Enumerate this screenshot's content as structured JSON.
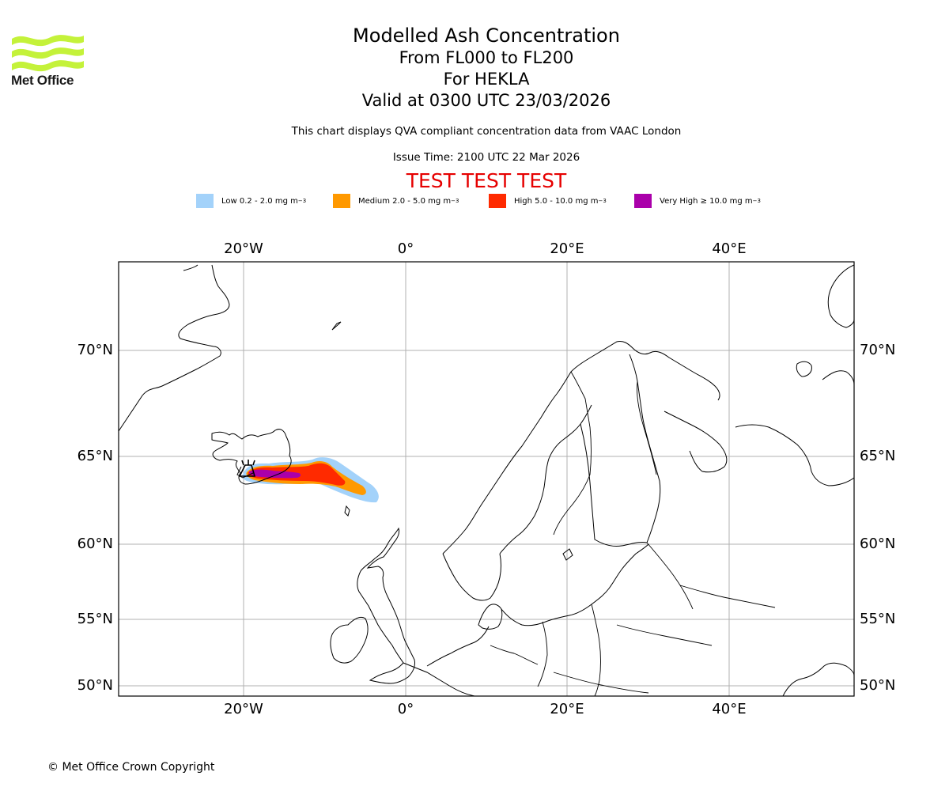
{
  "logo": {
    "text": "Met Office",
    "color": "#c4f23a"
  },
  "title": {
    "line1": "Modelled Ash Concentration",
    "line2": "From FL000 to FL200",
    "line3": "For HEKLA",
    "line4": "Valid at 0300 UTC 23/03/2026"
  },
  "subtitle": "This chart displays QVA compliant concentration data from VAAC London",
  "issue_time": "Issue Time: 2100 UTC 22 Mar 2026",
  "test_banner": "TEST TEST TEST",
  "legend": [
    {
      "label": "Low 0.2 - 2.0 mg m",
      "color": "#a3d2fa"
    },
    {
      "label": "Medium 2.0 - 5.0 mg m",
      "color": "#ff9900"
    },
    {
      "label": "High 5.0 - 10.0 mg m",
      "color": "#ff2a00"
    },
    {
      "label": "Very High ≥ 10.0 mg m",
      "color": "#aa00aa"
    }
  ],
  "legend_unit_exp": "−3",
  "map": {
    "lon_ticks": [
      "20°W",
      "0°",
      "20°E",
      "40°E"
    ],
    "lat_ticks": [
      "70°N",
      "65°N",
      "60°N",
      "55°N",
      "50°N"
    ]
  },
  "copyright": "© Met Office Crown Copyright"
}
